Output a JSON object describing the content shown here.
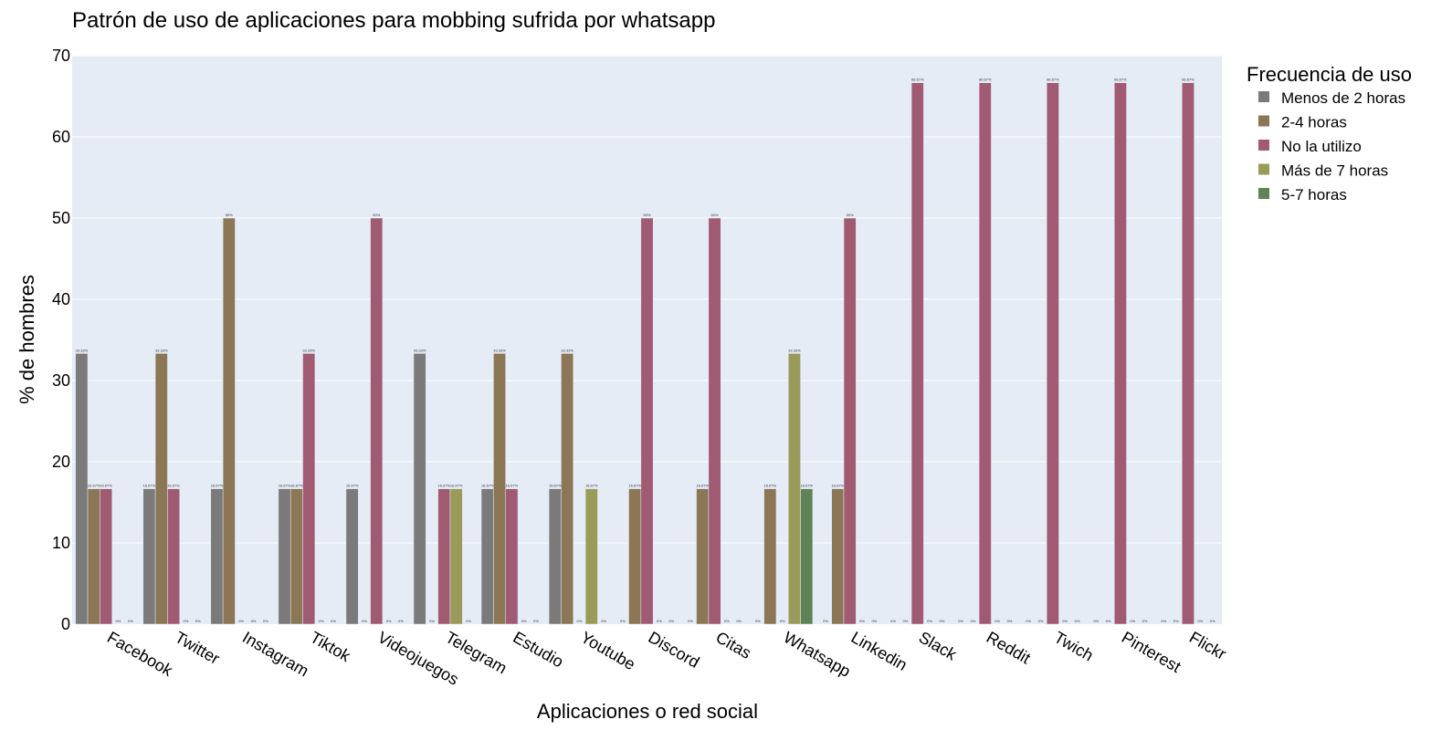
{
  "chart_data": {
    "type": "bar",
    "title": "Patrón de uso de aplicaciones para mobbing sufrida por whatsapp",
    "xlabel": "Aplicaciones o red social",
    "ylabel": "% de hombres",
    "ylim": [
      0,
      70
    ],
    "yticks": [
      "0",
      "10",
      "20",
      "30",
      "40",
      "50",
      "60",
      "70"
    ],
    "grid": true,
    "legend": {
      "title": "Frecuencia de uso",
      "placement": "top-right, outside plot"
    },
    "categories": [
      "Facebook",
      "Twitter",
      "Instagram",
      "Tiktok",
      "Videojuegos",
      "Telegram",
      "Estudio",
      "Youtube",
      "Discord",
      "Citas",
      "Whatsapp",
      "Linkedin",
      "Slack",
      "Reddit",
      "Twich",
      "Pinterest",
      "Flickr"
    ],
    "series": [
      {
        "name": "Menos de 2 horas",
        "color": "#7a7a7a",
        "values": [
          33.33,
          16.67,
          16.67,
          16.67,
          16.67,
          33.33,
          16.67,
          16.67,
          0,
          0,
          0,
          0,
          0,
          0,
          0,
          0,
          0
        ],
        "labels": [
          "33.33%",
          "16.67%",
          "16.67%",
          "16.67%",
          "16.67%",
          "33.33%",
          "16.67%",
          "16.67%",
          "0%",
          "0%",
          "0%",
          "0%",
          "0%",
          "0%",
          "0%",
          "0%",
          "0%"
        ]
      },
      {
        "name": "2-4 horas",
        "color": "#8b7655",
        "values": [
          16.67,
          33.33,
          50,
          16.67,
          0,
          0,
          33.33,
          33.33,
          16.67,
          16.67,
          16.67,
          16.67,
          0,
          0,
          0,
          0,
          0
        ],
        "labels": [
          "16.67%",
          "33.33%",
          "50%",
          "16.67%",
          "0%",
          "0%",
          "33.33%",
          "33.33%",
          "16.67%",
          "16.67%",
          "16.67%",
          "16.67%",
          "0%",
          "0%",
          "0%",
          "0%",
          "0%"
        ]
      },
      {
        "name": "No la utilizo",
        "color": "#a05b73",
        "values": [
          16.67,
          16.67,
          0,
          33.33,
          50,
          16.67,
          16.67,
          0,
          50,
          50,
          0,
          50,
          66.67,
          66.67,
          66.67,
          66.67,
          66.67
        ],
        "labels": [
          "16.67%",
          "16.67%",
          "0%",
          "33.33%",
          "50%",
          "16.67%",
          "16.67%",
          "0%",
          "50%",
          "50%",
          "0%",
          "50%",
          "66.67%",
          "66.67%",
          "66.67%",
          "66.67%",
          "66.67%"
        ]
      },
      {
        "name": "Más de 7 horas",
        "color": "#9a9a5a",
        "values": [
          0,
          0,
          0,
          0,
          0,
          16.67,
          0,
          16.67,
          0,
          0,
          33.33,
          0,
          0,
          0,
          0,
          0,
          0
        ],
        "labels": [
          "0%",
          "0%",
          "0%",
          "0%",
          "0%",
          "16.67%",
          "0%",
          "16.67%",
          "0%",
          "0%",
          "33.33%",
          "0%",
          "0%",
          "0%",
          "0%",
          "0%",
          "0%"
        ]
      },
      {
        "name": "5-7 horas",
        "color": "#5f8257",
        "values": [
          0,
          0,
          0,
          0,
          0,
          0,
          0,
          0,
          0,
          0,
          16.67,
          0,
          0,
          0,
          0,
          0,
          0
        ],
        "labels": [
          "0%",
          "0%",
          "0%",
          "0%",
          "0%",
          "0%",
          "0%",
          "0%",
          "0%",
          "0%",
          "16.67%",
          "0%",
          "0%",
          "0%",
          "0%",
          "0%",
          "0%"
        ]
      }
    ],
    "colors": {
      "plot_background": "#e5ecf6",
      "gridline": "#ffffff"
    }
  }
}
